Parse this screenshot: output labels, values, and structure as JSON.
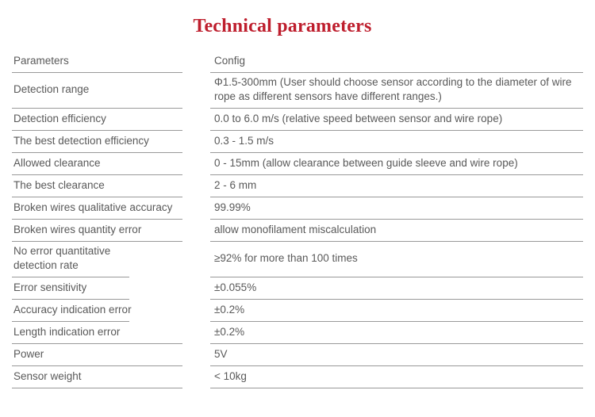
{
  "title": "Technical parameters",
  "colors": {
    "title_red": "#be1e2d",
    "text_gray": "#595959",
    "rule_gray": "#999999"
  },
  "table": {
    "header": {
      "parameter": "Parameters",
      "config": "Config"
    },
    "rows": [
      {
        "parameter": "Detection range",
        "config": "Φ1.5-300mm (User should choose sensor according to the diameter of wire rope as different sensors have different ranges.)",
        "tall": true
      },
      {
        "parameter": "Detection efficiency",
        "config": "0.0 to 6.0 m/s (relative speed between sensor and wire rope)"
      },
      {
        "parameter": "The best detection efficiency",
        "config": "0.3 - 1.5 m/s"
      },
      {
        "parameter": "Allowed clearance",
        "config": "0 - 15mm (allow clearance between guide sleeve and wire rope)"
      },
      {
        "parameter": "The best clearance",
        "config": "2 - 6 mm"
      },
      {
        "parameter": "Broken wires qualitative accuracy",
        "config": "99.99%"
      },
      {
        "parameter": "Broken wires quantity error",
        "config": "allow monofilament miscalculation"
      },
      {
        "parameter": "No error quantitative detection rate",
        "config": "≥92% for more than 100 times",
        "tall": true,
        "rule": "short",
        "wrap": true
      },
      {
        "parameter": "Error sensitivity",
        "config": "±0.055%",
        "rule": "short"
      },
      {
        "parameter": "Accuracy indication error",
        "config": "±0.2%",
        "rule": "short"
      },
      {
        "parameter": "Length indication error",
        "config": "±0.2%"
      },
      {
        "parameter": "Power",
        "config": "5V"
      },
      {
        "parameter": "Sensor weight",
        "config": "< 10kg"
      }
    ]
  }
}
